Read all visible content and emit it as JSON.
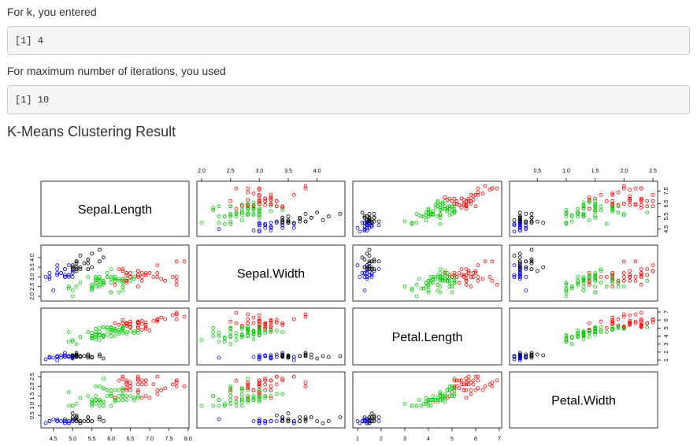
{
  "k_section": {
    "label": "For k, you entered",
    "output": "[1] 4"
  },
  "iter_section": {
    "label": "For maximum number of iterations, you used",
    "output": "[1] 10"
  },
  "result_title": "K-Means Clustering Result",
  "chart_data": {
    "type": "scatter",
    "kind": "pairs-matrix",
    "variables": [
      "Sepal.Length",
      "Sepal.Width",
      "Petal.Length",
      "Petal.Width"
    ],
    "ranges": [
      [
        4.3,
        7.9
      ],
      [
        2.0,
        4.4
      ],
      [
        1.0,
        6.9
      ],
      [
        0.1,
        2.5
      ]
    ],
    "ticks": [
      [
        "4.5",
        "5.0",
        "5.5",
        "6.0",
        "6.5",
        "7.0",
        "7.5",
        "8.0"
      ],
      [
        "2.0",
        "2.5",
        "3.0",
        "3.5",
        "4.0"
      ],
      [
        "1",
        "2",
        "3",
        "4",
        "5",
        "6",
        "7"
      ],
      [
        "0.5",
        "1.0",
        "1.5",
        "2.0",
        "2.5"
      ]
    ],
    "cluster_colors": {
      "1": "#000000",
      "2": "#ff0000",
      "3": "#00cc00",
      "4": "#0000ff"
    },
    "grid": false,
    "points": [
      [
        5.1,
        3.5,
        1.4,
        0.2,
        1
      ],
      [
        4.9,
        3.0,
        1.4,
        0.2,
        4
      ],
      [
        4.7,
        3.2,
        1.3,
        0.2,
        4
      ],
      [
        4.6,
        3.1,
        1.5,
        0.2,
        4
      ],
      [
        5.0,
        3.6,
        1.4,
        0.2,
        1
      ],
      [
        5.4,
        3.9,
        1.7,
        0.4,
        1
      ],
      [
        4.6,
        3.4,
        1.4,
        0.3,
        4
      ],
      [
        5.0,
        3.4,
        1.5,
        0.2,
        1
      ],
      [
        4.4,
        2.9,
        1.4,
        0.2,
        4
      ],
      [
        4.9,
        3.1,
        1.5,
        0.1,
        4
      ],
      [
        5.4,
        3.7,
        1.5,
        0.2,
        1
      ],
      [
        4.8,
        3.4,
        1.6,
        0.2,
        4
      ],
      [
        4.8,
        3.0,
        1.4,
        0.1,
        4
      ],
      [
        4.3,
        3.0,
        1.1,
        0.1,
        4
      ],
      [
        5.8,
        4.0,
        1.2,
        0.2,
        1
      ],
      [
        5.7,
        4.4,
        1.5,
        0.4,
        1
      ],
      [
        5.4,
        3.9,
        1.3,
        0.4,
        1
      ],
      [
        5.1,
        3.5,
        1.4,
        0.3,
        1
      ],
      [
        5.7,
        3.8,
        1.7,
        0.3,
        1
      ],
      [
        5.1,
        3.8,
        1.5,
        0.3,
        1
      ],
      [
        5.4,
        3.4,
        1.7,
        0.2,
        1
      ],
      [
        5.1,
        3.7,
        1.5,
        0.4,
        1
      ],
      [
        4.6,
        3.6,
        1.0,
        0.2,
        4
      ],
      [
        5.1,
        3.3,
        1.7,
        0.5,
        1
      ],
      [
        4.8,
        3.4,
        1.9,
        0.2,
        4
      ],
      [
        5.0,
        3.0,
        1.6,
        0.2,
        4
      ],
      [
        5.0,
        3.4,
        1.6,
        0.4,
        1
      ],
      [
        5.2,
        3.5,
        1.5,
        0.2,
        1
      ],
      [
        5.2,
        3.4,
        1.4,
        0.2,
        1
      ],
      [
        4.7,
        3.2,
        1.6,
        0.2,
        4
      ],
      [
        4.8,
        3.1,
        1.6,
        0.2,
        4
      ],
      [
        5.4,
        3.4,
        1.5,
        0.4,
        1
      ],
      [
        5.2,
        4.1,
        1.5,
        0.1,
        1
      ],
      [
        5.5,
        4.2,
        1.4,
        0.2,
        1
      ],
      [
        4.9,
        3.1,
        1.5,
        0.2,
        4
      ],
      [
        5.0,
        3.2,
        1.2,
        0.2,
        4
      ],
      [
        5.5,
        3.5,
        1.3,
        0.2,
        1
      ],
      [
        4.9,
        3.6,
        1.4,
        0.1,
        4
      ],
      [
        4.4,
        3.0,
        1.3,
        0.2,
        4
      ],
      [
        5.1,
        3.4,
        1.5,
        0.2,
        1
      ],
      [
        5.0,
        3.5,
        1.3,
        0.3,
        1
      ],
      [
        4.5,
        2.3,
        1.3,
        0.3,
        4
      ],
      [
        4.4,
        3.2,
        1.3,
        0.2,
        4
      ],
      [
        5.0,
        3.5,
        1.6,
        0.6,
        1
      ],
      [
        5.1,
        3.8,
        1.9,
        0.4,
        1
      ],
      [
        4.8,
        3.0,
        1.4,
        0.3,
        4
      ],
      [
        5.1,
        3.8,
        1.6,
        0.2,
        1
      ],
      [
        4.6,
        3.2,
        1.4,
        0.2,
        4
      ],
      [
        5.3,
        3.7,
        1.5,
        0.2,
        1
      ],
      [
        5.0,
        3.3,
        1.4,
        0.2,
        4
      ],
      [
        7.0,
        3.2,
        4.7,
        1.4,
        2
      ],
      [
        6.4,
        3.2,
        4.5,
        1.5,
        3
      ],
      [
        6.9,
        3.1,
        4.9,
        1.5,
        2
      ],
      [
        5.5,
        2.3,
        4.0,
        1.3,
        3
      ],
      [
        6.5,
        2.8,
        4.6,
        1.5,
        3
      ],
      [
        5.7,
        2.8,
        4.5,
        1.3,
        3
      ],
      [
        6.3,
        3.3,
        4.7,
        1.6,
        3
      ],
      [
        4.9,
        2.4,
        3.3,
        1.0,
        3
      ],
      [
        6.6,
        2.9,
        4.6,
        1.3,
        3
      ],
      [
        5.2,
        2.7,
        3.9,
        1.4,
        3
      ],
      [
        5.0,
        2.0,
        3.5,
        1.0,
        3
      ],
      [
        5.9,
        3.0,
        4.2,
        1.5,
        3
      ],
      [
        6.0,
        2.2,
        4.0,
        1.0,
        3
      ],
      [
        6.1,
        2.9,
        4.7,
        1.4,
        3
      ],
      [
        5.6,
        2.9,
        3.6,
        1.3,
        3
      ],
      [
        6.7,
        3.1,
        4.4,
        1.4,
        3
      ],
      [
        5.6,
        3.0,
        4.5,
        1.5,
        3
      ],
      [
        5.8,
        2.7,
        4.1,
        1.0,
        3
      ],
      [
        6.2,
        2.2,
        4.5,
        1.5,
        3
      ],
      [
        5.6,
        2.5,
        3.9,
        1.1,
        3
      ],
      [
        5.9,
        3.2,
        4.8,
        1.8,
        3
      ],
      [
        6.1,
        2.8,
        4.0,
        1.3,
        3
      ],
      [
        6.3,
        2.5,
        4.9,
        1.5,
        3
      ],
      [
        6.1,
        2.8,
        4.7,
        1.2,
        3
      ],
      [
        6.4,
        2.9,
        4.3,
        1.3,
        3
      ],
      [
        6.6,
        3.0,
        4.4,
        1.4,
        3
      ],
      [
        6.8,
        2.8,
        4.8,
        1.4,
        2
      ],
      [
        6.7,
        3.0,
        5.0,
        1.7,
        2
      ],
      [
        6.0,
        2.9,
        4.5,
        1.5,
        3
      ],
      [
        5.7,
        2.6,
        3.5,
        1.0,
        3
      ],
      [
        5.5,
        2.4,
        3.8,
        1.1,
        3
      ],
      [
        5.5,
        2.4,
        3.7,
        1.0,
        3
      ],
      [
        5.8,
        2.7,
        3.9,
        1.2,
        3
      ],
      [
        6.0,
        2.7,
        5.1,
        1.6,
        3
      ],
      [
        5.4,
        3.0,
        4.5,
        1.5,
        3
      ],
      [
        6.0,
        3.4,
        4.5,
        1.6,
        3
      ],
      [
        6.7,
        3.1,
        4.7,
        1.5,
        3
      ],
      [
        6.3,
        2.3,
        4.4,
        1.3,
        3
      ],
      [
        5.6,
        3.0,
        4.1,
        1.3,
        3
      ],
      [
        5.5,
        2.5,
        4.0,
        1.3,
        3
      ],
      [
        5.5,
        2.6,
        4.4,
        1.2,
        3
      ],
      [
        6.1,
        3.0,
        4.6,
        1.4,
        3
      ],
      [
        5.8,
        2.6,
        4.0,
        1.2,
        3
      ],
      [
        5.0,
        2.3,
        3.3,
        1.0,
        3
      ],
      [
        5.6,
        2.7,
        4.2,
        1.3,
        3
      ],
      [
        5.7,
        3.0,
        4.2,
        1.2,
        3
      ],
      [
        5.7,
        2.9,
        4.2,
        1.3,
        3
      ],
      [
        6.2,
        2.9,
        4.3,
        1.3,
        3
      ],
      [
        5.1,
        2.5,
        3.0,
        1.1,
        3
      ],
      [
        5.7,
        2.8,
        4.1,
        1.3,
        3
      ],
      [
        6.3,
        3.3,
        6.0,
        2.5,
        2
      ],
      [
        5.8,
        2.7,
        5.1,
        1.9,
        3
      ],
      [
        7.1,
        3.0,
        5.9,
        2.1,
        2
      ],
      [
        6.3,
        2.9,
        5.6,
        1.8,
        2
      ],
      [
        6.5,
        3.0,
        5.8,
        2.2,
        2
      ],
      [
        7.6,
        3.0,
        6.6,
        2.1,
        2
      ],
      [
        4.9,
        2.5,
        4.5,
        1.7,
        3
      ],
      [
        7.3,
        2.9,
        6.3,
        1.8,
        2
      ],
      [
        6.7,
        2.5,
        5.8,
        1.8,
        2
      ],
      [
        7.2,
        3.6,
        6.1,
        2.5,
        2
      ],
      [
        6.5,
        3.2,
        5.1,
        2.0,
        2
      ],
      [
        6.4,
        2.7,
        5.3,
        1.9,
        2
      ],
      [
        6.8,
        3.0,
        5.5,
        2.1,
        2
      ],
      [
        5.7,
        2.5,
        5.0,
        2.0,
        3
      ],
      [
        5.8,
        2.8,
        5.1,
        2.4,
        3
      ],
      [
        6.4,
        3.2,
        5.3,
        2.3,
        2
      ],
      [
        6.5,
        3.0,
        5.5,
        1.8,
        2
      ],
      [
        7.7,
        3.8,
        6.7,
        2.2,
        2
      ],
      [
        7.7,
        2.6,
        6.9,
        2.3,
        2
      ],
      [
        6.0,
        2.2,
        5.0,
        1.5,
        3
      ],
      [
        6.9,
        3.2,
        5.7,
        2.3,
        2
      ],
      [
        5.6,
        2.8,
        4.9,
        2.0,
        3
      ],
      [
        7.7,
        2.8,
        6.7,
        2.0,
        2
      ],
      [
        6.3,
        2.7,
        4.9,
        1.8,
        3
      ],
      [
        6.7,
        3.3,
        5.7,
        2.1,
        2
      ],
      [
        7.2,
        3.2,
        6.0,
        1.8,
        2
      ],
      [
        6.2,
        2.8,
        4.8,
        1.8,
        3
      ],
      [
        6.1,
        3.0,
        4.9,
        1.8,
        3
      ],
      [
        6.4,
        2.8,
        5.6,
        2.1,
        2
      ],
      [
        7.2,
        3.0,
        5.8,
        1.6,
        2
      ],
      [
        7.4,
        2.8,
        6.1,
        1.9,
        2
      ],
      [
        7.9,
        3.8,
        6.4,
        2.0,
        2
      ],
      [
        6.4,
        2.8,
        5.6,
        2.2,
        2
      ],
      [
        6.3,
        2.8,
        5.1,
        1.5,
        3
      ],
      [
        6.1,
        2.6,
        5.6,
        1.4,
        2
      ],
      [
        7.7,
        3.0,
        6.1,
        2.3,
        2
      ],
      [
        6.3,
        3.4,
        5.6,
        2.4,
        2
      ],
      [
        6.4,
        3.1,
        5.5,
        1.8,
        2
      ],
      [
        6.0,
        3.0,
        4.8,
        1.8,
        3
      ],
      [
        6.9,
        3.1,
        5.4,
        2.1,
        2
      ],
      [
        6.7,
        3.1,
        5.6,
        2.4,
        2
      ],
      [
        6.9,
        3.1,
        5.1,
        2.3,
        2
      ],
      [
        5.8,
        2.7,
        5.1,
        1.9,
        3
      ],
      [
        6.8,
        3.2,
        5.9,
        2.3,
        2
      ],
      [
        6.7,
        3.3,
        5.7,
        2.5,
        2
      ],
      [
        6.7,
        3.0,
        5.2,
        2.3,
        2
      ],
      [
        6.3,
        2.5,
        5.0,
        1.9,
        3
      ],
      [
        6.5,
        3.0,
        5.2,
        2.0,
        2
      ],
      [
        6.2,
        3.4,
        5.4,
        2.3,
        2
      ],
      [
        5.9,
        3.0,
        5.1,
        1.8,
        3
      ]
    ]
  }
}
